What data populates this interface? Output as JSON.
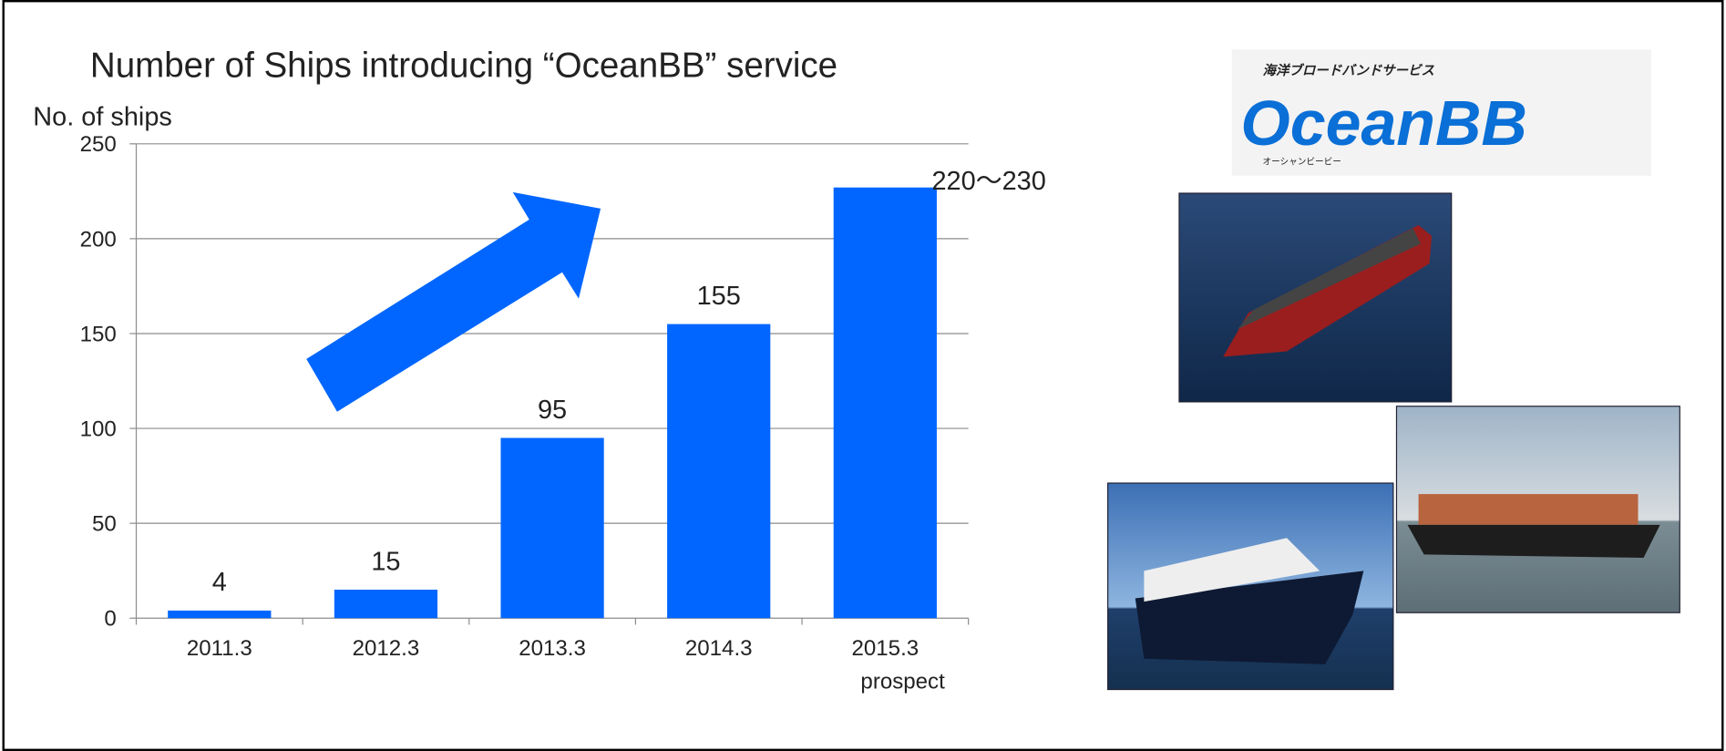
{
  "chart_data": {
    "type": "bar",
    "title": "Number of Ships introducing “OceanBB” service",
    "y_label": "No. of ships",
    "categories": [
      "2011.3",
      "2012.3",
      "2013.3",
      "2014.3",
      "2015.3\nprospect"
    ],
    "values": [
      4,
      15,
      95,
      155,
      227
    ],
    "value_labels": [
      "4",
      "15",
      "95",
      "155",
      "220〜230"
    ],
    "color": "#0066ff",
    "ylim": [
      0,
      250
    ],
    "yticks": [
      0,
      50,
      100,
      150,
      200,
      250
    ],
    "grid": true
  },
  "logo": {
    "caption": "海洋ブロードバンドサービス",
    "name": "OceanBB",
    "reading": "オーシャンビービー"
  }
}
